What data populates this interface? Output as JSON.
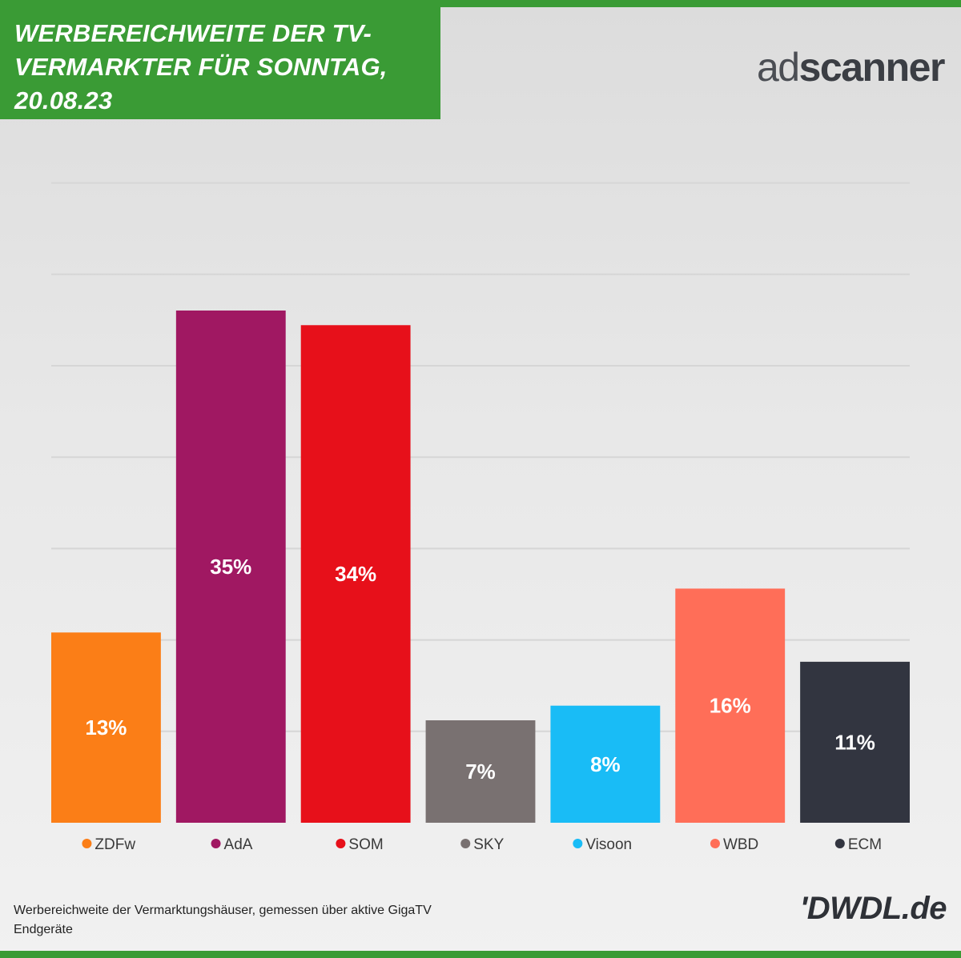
{
  "header": {
    "title": "WERBEREICHWEITE DER TV-VERMARKTER FÜR SONNTAG, 20.08.23"
  },
  "logo": {
    "prefix": "ad",
    "suffix": "scanner"
  },
  "brand": "'DWDL.de",
  "footnote": "Werbereichweite der Vermarktungshäuser, gemessen über aktive GigaTV Endgeräte",
  "chart_data": {
    "type": "bar",
    "categories": [
      "ZDFw",
      "AdA",
      "SOM",
      "SKY",
      "Visoon",
      "WBD",
      "ECM"
    ],
    "values": [
      13,
      35,
      34,
      7,
      8,
      16,
      11
    ],
    "labels": [
      "13%",
      "35%",
      "34%",
      "7%",
      "8%",
      "16%",
      "11%"
    ],
    "colors": [
      "#fb7e17",
      "#a01862",
      "#e7101a",
      "#797171",
      "#19bcf6",
      "#ff6e58",
      "#323540"
    ],
    "ylim": [
      0,
      35
    ],
    "grid": true,
    "legend_position": "bottom"
  }
}
